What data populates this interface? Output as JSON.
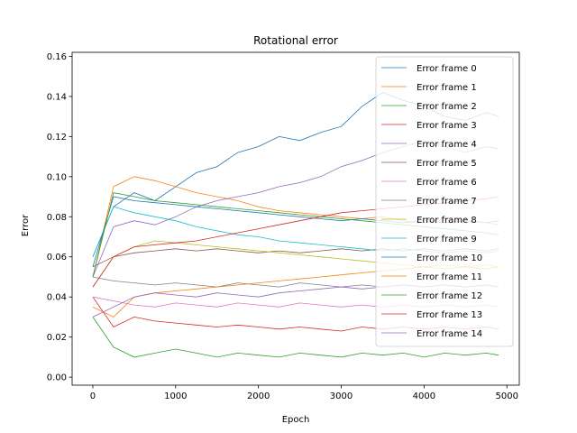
{
  "chart_data": {
    "type": "line",
    "title": "Rotational error",
    "xlabel": "Epoch",
    "ylabel": "Error",
    "xlim": [
      -250,
      5150
    ],
    "ylim": [
      -0.004,
      0.162
    ],
    "xticks": [
      0,
      1000,
      2000,
      3000,
      4000,
      5000
    ],
    "yticks": [
      0.0,
      0.02,
      0.04,
      0.06,
      0.08,
      0.1,
      0.12,
      0.14,
      0.16
    ],
    "xtick_labels": [
      "0",
      "1000",
      "2000",
      "3000",
      "4000",
      "5000"
    ],
    "ytick_labels": [
      "0.00",
      "0.02",
      "0.04",
      "0.06",
      "0.08",
      "0.10",
      "0.12",
      "0.14",
      "0.16"
    ],
    "grid": false,
    "legend": "top-right",
    "series": [
      {
        "name": "Error frame 0",
        "color": "#1f77b4",
        "x": [
          0,
          250,
          500,
          750,
          1000,
          1250,
          1500,
          1750,
          2000,
          2250,
          2500,
          2750,
          3000,
          3250,
          3500,
          3750,
          4000,
          4250,
          4500,
          4750,
          4900
        ],
        "values": [
          0.06,
          0.085,
          0.092,
          0.088,
          0.095,
          0.102,
          0.105,
          0.112,
          0.115,
          0.12,
          0.118,
          0.122,
          0.125,
          0.135,
          0.142,
          0.138,
          0.135,
          0.13,
          0.128,
          0.132,
          0.13
        ]
      },
      {
        "name": "Error frame 1",
        "color": "#ff7f0e",
        "x": [
          0,
          250,
          500,
          750,
          1000,
          1250,
          1500,
          1750,
          2000,
          2250,
          2500,
          2750,
          3000,
          3250,
          3500,
          3750,
          4000,
          4250,
          4500,
          4750,
          4900
        ],
        "values": [
          0.05,
          0.095,
          0.1,
          0.098,
          0.095,
          0.092,
          0.09,
          0.088,
          0.085,
          0.083,
          0.082,
          0.081,
          0.08,
          0.079,
          0.08,
          0.078,
          0.077,
          0.079,
          0.078,
          0.077,
          0.076
        ]
      },
      {
        "name": "Error frame 2",
        "color": "#2ca02c",
        "x": [
          0,
          250,
          500,
          750,
          1000,
          1250,
          1500,
          1750,
          2000,
          2250,
          2500,
          2750,
          3000,
          3250,
          3500,
          3750,
          4000,
          4250,
          4500,
          4750,
          4900
        ],
        "values": [
          0.03,
          0.015,
          0.01,
          0.012,
          0.014,
          0.012,
          0.01,
          0.012,
          0.011,
          0.01,
          0.012,
          0.011,
          0.01,
          0.012,
          0.011,
          0.012,
          0.01,
          0.012,
          0.011,
          0.012,
          0.011
        ]
      },
      {
        "name": "Error frame 3",
        "color": "#d62728",
        "x": [
          0,
          250,
          500,
          750,
          1000,
          1250,
          1500,
          1750,
          2000,
          2250,
          2500,
          2750,
          3000,
          3250,
          3500,
          3750,
          4000,
          4250,
          4500,
          4750,
          4900
        ],
        "values": [
          0.04,
          0.025,
          0.03,
          0.028,
          0.027,
          0.026,
          0.025,
          0.026,
          0.025,
          0.024,
          0.025,
          0.024,
          0.023,
          0.025,
          0.024,
          0.025,
          0.024,
          0.025,
          0.024,
          0.025,
          0.024
        ]
      },
      {
        "name": "Error frame 4",
        "color": "#9467bd",
        "x": [
          0,
          250,
          500,
          750,
          1000,
          1250,
          1500,
          1750,
          2000,
          2250,
          2500,
          2750,
          3000,
          3250,
          3500,
          3750,
          4000,
          4250,
          4500,
          4750,
          4900
        ],
        "values": [
          0.05,
          0.075,
          0.078,
          0.076,
          0.08,
          0.085,
          0.088,
          0.09,
          0.092,
          0.095,
          0.097,
          0.1,
          0.105,
          0.108,
          0.112,
          0.115,
          0.118,
          0.115,
          0.112,
          0.115,
          0.114
        ]
      },
      {
        "name": "Error frame 5",
        "color": "#8c564b",
        "x": [
          0,
          250,
          500,
          750,
          1000,
          1250,
          1500,
          1750,
          2000,
          2250,
          2500,
          2750,
          3000,
          3250,
          3500,
          3750,
          4000,
          4250,
          4500,
          4750,
          4900
        ],
        "values": [
          0.055,
          0.06,
          0.062,
          0.063,
          0.064,
          0.063,
          0.064,
          0.063,
          0.062,
          0.063,
          0.062,
          0.063,
          0.064,
          0.063,
          0.064,
          0.063,
          0.064,
          0.063,
          0.064,
          0.063,
          0.064
        ]
      },
      {
        "name": "Error frame 6",
        "color": "#e377c2",
        "x": [
          0,
          250,
          500,
          750,
          1000,
          1250,
          1500,
          1750,
          2000,
          2250,
          2500,
          2750,
          3000,
          3250,
          3500,
          3750,
          4000,
          4250,
          4500,
          4750,
          4900
        ],
        "values": [
          0.04,
          0.038,
          0.036,
          0.035,
          0.037,
          0.036,
          0.035,
          0.037,
          0.036,
          0.035,
          0.037,
          0.036,
          0.035,
          0.036,
          0.035,
          0.036,
          0.035,
          0.036,
          0.035,
          0.036,
          0.035
        ]
      },
      {
        "name": "Error frame 7",
        "color": "#7f7f7f",
        "x": [
          0,
          250,
          500,
          750,
          1000,
          1250,
          1500,
          1750,
          2000,
          2250,
          2500,
          2750,
          3000,
          3250,
          3500,
          3750,
          4000,
          4250,
          4500,
          4750,
          4900
        ],
        "values": [
          0.05,
          0.048,
          0.047,
          0.046,
          0.047,
          0.046,
          0.045,
          0.047,
          0.046,
          0.045,
          0.047,
          0.046,
          0.045,
          0.046,
          0.045,
          0.046,
          0.045,
          0.046,
          0.045,
          0.046,
          0.045
        ]
      },
      {
        "name": "Error frame 8",
        "color": "#bcbd22",
        "x": [
          0,
          250,
          500,
          750,
          1000,
          1250,
          1500,
          1750,
          2000,
          2250,
          2500,
          2750,
          3000,
          3250,
          3500,
          3750,
          4000,
          4250,
          4500,
          4750,
          4900
        ],
        "values": [
          0.045,
          0.06,
          0.065,
          0.068,
          0.067,
          0.066,
          0.065,
          0.064,
          0.063,
          0.062,
          0.061,
          0.06,
          0.059,
          0.058,
          0.057,
          0.056,
          0.055,
          0.056,
          0.055,
          0.056,
          0.055
        ]
      },
      {
        "name": "Error frame 9",
        "color": "#17becf",
        "x": [
          0,
          250,
          500,
          750,
          1000,
          1250,
          1500,
          1750,
          2000,
          2250,
          2500,
          2750,
          3000,
          3250,
          3500,
          3750,
          4000,
          4250,
          4500,
          4750,
          4900
        ],
        "values": [
          0.06,
          0.085,
          0.082,
          0.08,
          0.078,
          0.075,
          0.073,
          0.071,
          0.07,
          0.068,
          0.067,
          0.066,
          0.065,
          0.064,
          0.063,
          0.064,
          0.063,
          0.062,
          0.063,
          0.062,
          0.063
        ]
      },
      {
        "name": "Error frame 10",
        "color": "#1f77b4",
        "x": [
          0,
          250,
          500,
          750,
          1000,
          1250,
          1500,
          1750,
          2000,
          2250,
          2500,
          2750,
          3000,
          3250,
          3500,
          3750,
          4000,
          4250,
          4500,
          4750,
          4900
        ],
        "values": [
          0.055,
          0.09,
          0.088,
          0.087,
          0.086,
          0.085,
          0.084,
          0.083,
          0.082,
          0.081,
          0.08,
          0.079,
          0.078,
          0.079,
          0.078,
          0.077,
          0.078,
          0.077,
          0.078,
          0.077,
          0.078
        ]
      },
      {
        "name": "Error frame 11",
        "color": "#ff7f0e",
        "x": [
          0,
          250,
          500,
          750,
          1000,
          1250,
          1500,
          1750,
          2000,
          2250,
          2500,
          2750,
          3000,
          3250,
          3500,
          3750,
          4000,
          4250,
          4500,
          4750,
          4900
        ],
        "values": [
          0.035,
          0.03,
          0.04,
          0.042,
          0.043,
          0.044,
          0.045,
          0.046,
          0.047,
          0.048,
          0.049,
          0.05,
          0.051,
          0.052,
          0.053,
          0.054,
          0.055,
          0.054,
          0.055,
          0.054,
          0.055
        ]
      },
      {
        "name": "Error frame 12",
        "color": "#2ca02c",
        "x": [
          0,
          250,
          500,
          750,
          1000,
          1250,
          1500,
          1750,
          2000,
          2250,
          2500,
          2750,
          3000,
          3250,
          3500,
          3750,
          4000,
          4250,
          4500,
          4750,
          4900
        ],
        "values": [
          0.05,
          0.092,
          0.09,
          0.088,
          0.087,
          0.086,
          0.085,
          0.084,
          0.083,
          0.082,
          0.081,
          0.08,
          0.079,
          0.078,
          0.077,
          0.076,
          0.075,
          0.074,
          0.073,
          0.072,
          0.071
        ]
      },
      {
        "name": "Error frame 13",
        "color": "#d62728",
        "x": [
          0,
          250,
          500,
          750,
          1000,
          1250,
          1500,
          1750,
          2000,
          2250,
          2500,
          2750,
          3000,
          3250,
          3500,
          3750,
          4000,
          4250,
          4500,
          4750,
          4900
        ],
        "values": [
          0.045,
          0.06,
          0.065,
          0.066,
          0.067,
          0.068,
          0.07,
          0.072,
          0.074,
          0.076,
          0.078,
          0.08,
          0.082,
          0.083,
          0.084,
          0.085,
          0.086,
          0.087,
          0.088,
          0.089,
          0.09
        ]
      },
      {
        "name": "Error frame 14",
        "color": "#9467bd",
        "x": [
          0,
          250,
          500,
          750,
          1000,
          1250,
          1500,
          1750,
          2000,
          2250,
          2500,
          2750,
          3000,
          3250,
          3500,
          3750,
          4000,
          4250,
          4500,
          4750,
          4900
        ],
        "values": [
          0.03,
          0.035,
          0.04,
          0.042,
          0.041,
          0.04,
          0.042,
          0.041,
          0.04,
          0.042,
          0.043,
          0.044,
          0.045,
          0.044,
          0.045,
          0.046,
          0.045,
          0.046,
          0.045,
          0.046,
          0.045
        ]
      }
    ]
  }
}
